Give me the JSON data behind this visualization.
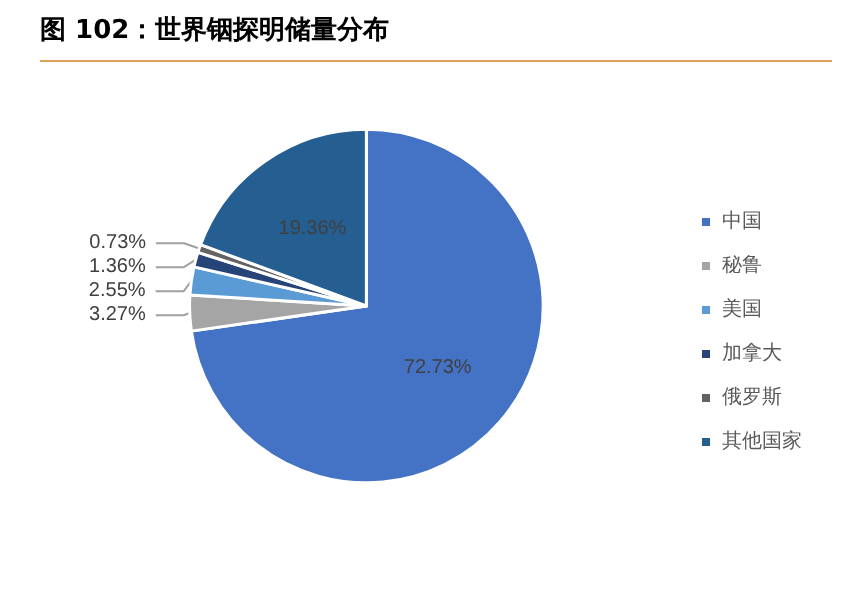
{
  "chart_data": {
    "type": "pie",
    "title": "图 102：世界铟探明储量分布",
    "categories": [
      "中国",
      "秘鲁",
      "美国",
      "加拿大",
      "俄罗斯",
      "其他国家"
    ],
    "values": [
      72.73,
      3.27,
      2.55,
      1.36,
      0.73,
      19.36
    ],
    "colors": [
      "#4472c4",
      "#a5a5a5",
      "#5b9bd5",
      "#264478",
      "#636363",
      "#255e91"
    ],
    "value_labels": [
      "72.73%",
      "3.27%",
      "2.55%",
      "1.36%",
      "0.73%",
      "19.36%"
    ],
    "legend": "right"
  }
}
